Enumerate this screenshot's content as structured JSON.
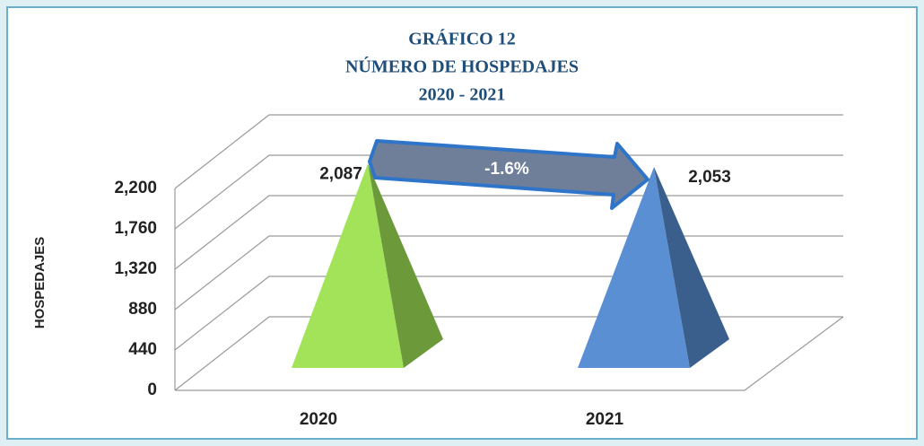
{
  "chart_data": {
    "type": "pyramid",
    "title": [
      "GRÁFICO 12",
      "NÚMERO DE HOSPEDAJES",
      "2020 - 2021"
    ],
    "y_axis_label": "HOSPEDAJES",
    "categories": [
      "2020",
      "2021"
    ],
    "values": [
      2087,
      2053
    ],
    "value_labels": [
      "2,087",
      "2,053"
    ],
    "colors": [
      "#a3e35a",
      "#5b8fd4"
    ],
    "side_colors": [
      "#6c9a3a",
      "#3a5f8c"
    ],
    "annotation": "-1.6%",
    "ylim": [
      0,
      2200
    ],
    "yticks": [
      0,
      440,
      {
        "value": 880,
        "label": "880"
      },
      {
        "value": 1320,
        "label": "1,320"
      },
      {
        "value": 1760,
        "label": "1,760"
      },
      {
        "value": 2200,
        "label": "2,200"
      }
    ],
    "grid": true
  }
}
